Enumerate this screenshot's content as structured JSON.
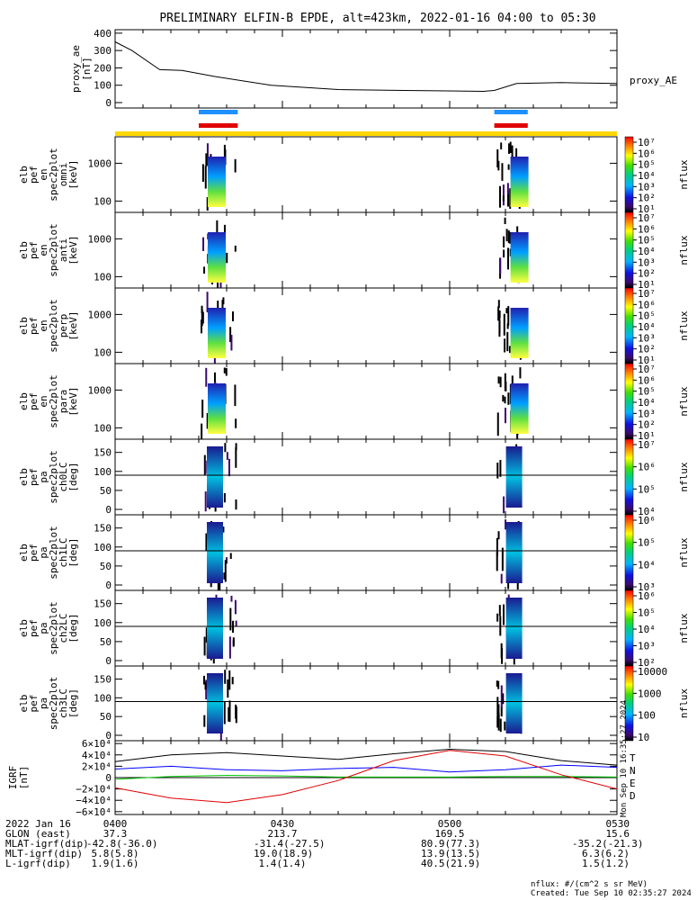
{
  "title": "PRELIMINARY ELFIN-B EPDE, alt=423km, 2022-01-16 04:00 to 05:30",
  "panels": [
    {
      "ylabel": [
        "proxy_ae",
        "[nT]"
      ],
      "right_label": "proxy_AE",
      "yticks": [
        "400",
        "300",
        "200",
        "100",
        "0"
      ]
    },
    {
      "ylabel": [
        "elb",
        "pef",
        "en",
        "spec2plot",
        "omni",
        "[keV]"
      ],
      "right_label": "nflux",
      "yticks": [
        "1000",
        "100"
      ]
    },
    {
      "ylabel": [
        "elb",
        "pef",
        "en",
        "spec2plot",
        "anti",
        "[keV]"
      ],
      "right_label": "nflux",
      "yticks": [
        "1000",
        "100"
      ]
    },
    {
      "ylabel": [
        "elb",
        "pef",
        "en",
        "spec2plot",
        "perp",
        "[keV]"
      ],
      "right_label": "nflux",
      "yticks": [
        "1000",
        "100"
      ]
    },
    {
      "ylabel": [
        "elb",
        "pef",
        "en",
        "spec2plot",
        "para",
        "[keV]"
      ],
      "right_label": "nflux",
      "yticks": [
        "1000",
        "100"
      ]
    },
    {
      "ylabel": [
        "elb",
        "pef",
        "pa",
        "spec2plot",
        "ch0LC",
        "[deg]"
      ],
      "right_label": "nflux",
      "yticks": [
        "150",
        "100",
        "50",
        "0"
      ]
    },
    {
      "ylabel": [
        "elb",
        "pef",
        "pa",
        "spec2plot",
        "ch1LC",
        "[deg]"
      ],
      "right_label": "nflux",
      "yticks": [
        "150",
        "100",
        "50",
        "0"
      ]
    },
    {
      "ylabel": [
        "elb",
        "pef",
        "pa",
        "spec2plot",
        "ch2LC",
        "[deg]"
      ],
      "right_label": "nflux",
      "yticks": [
        "150",
        "100",
        "50",
        "0"
      ]
    },
    {
      "ylabel": [
        "elb",
        "pef",
        "pa",
        "spec2plot",
        "ch3LC",
        "[deg]"
      ],
      "right_label": "nflux",
      "yticks": [
        "150",
        "100",
        "50",
        "0"
      ]
    },
    {
      "ylabel": [
        "IGRF",
        "[nT]"
      ],
      "right_label": "",
      "yticks": [
        "6×10⁴",
        "4×10⁴",
        "2×10⁴",
        "0",
        "−2×10⁴",
        "−4×10⁴",
        "−6×10⁴"
      ]
    }
  ],
  "colorbars": [
    {
      "labels": [
        "10⁷",
        "10⁶",
        "10⁵",
        "10⁴",
        "10³",
        "10²",
        "10¹"
      ]
    },
    {
      "labels": [
        "10⁷",
        "10⁶",
        "10⁵",
        "10⁴",
        "10³",
        "10²",
        "10¹"
      ]
    },
    {
      "labels": [
        "10⁷",
        "10⁶",
        "10⁵",
        "10⁴",
        "10³",
        "10²",
        "10¹"
      ]
    },
    {
      "labels": [
        "10⁷",
        "10⁶",
        "10⁵",
        "10⁴",
        "10³",
        "10²",
        "10¹"
      ]
    },
    {
      "labels": [
        "10⁷",
        "10⁶",
        "10⁵",
        "10⁴"
      ]
    },
    {
      "labels": [
        "10⁶",
        "10⁵",
        "10⁴",
        "10³"
      ]
    },
    {
      "labels": [
        "10⁶",
        "10⁵",
        "10⁴",
        "10³",
        "10²"
      ]
    },
    {
      "labels": [
        "10000",
        "1000",
        "100",
        "10"
      ]
    }
  ],
  "igrf_legend": [
    {
      "label": "T",
      "color": "#000000"
    },
    {
      "label": "N",
      "color": "#0000ff"
    },
    {
      "label": "E",
      "color": "#00c800"
    },
    {
      "label": "D",
      "color": "#e00000"
    }
  ],
  "side_stamp": "Mon Sep 10 16:35:27 2024",
  "footer": {
    "rows": [
      {
        "label": "2022 Jan 16",
        "values": [
          "0400",
          "0430",
          "0500",
          "0530"
        ]
      },
      {
        "label": "GLON (east)",
        "values": [
          "37.3",
          "213.7",
          "169.5",
          "15.6"
        ]
      },
      {
        "label": "MLAT-igrf(dip)",
        "values": [
          "-42.8(-36.0)",
          "-31.4(-27.5)",
          "80.9(77.3)",
          "-35.2(-21.3)"
        ]
      },
      {
        "label": "MLT-igrf(dip)",
        "values": [
          "5.8(5.8)",
          "19.0(18.9)",
          "13.9(13.5)",
          "6.3(6.2)"
        ]
      },
      {
        "label": "L-igrf(dip)",
        "values": [
          "1.9(1.6)",
          "1.4(1.4)",
          "40.5(21.9)",
          "1.5(1.2)"
        ]
      }
    ],
    "units_note": "nflux: #/(cm^2 s sr MeV)",
    "created": "Created: Tue Sep 10 02:35:27 2024"
  },
  "colors": {
    "science_zone_bar": "#ffd700",
    "blue_bar": "#1e90ff",
    "red_bar": "#e00000"
  },
  "chart_data": {
    "type": "line+spectrogram",
    "time_range": [
      "04:00",
      "05:30"
    ],
    "proxy_ae": {
      "t_min": [
        0,
        3,
        8,
        12,
        18,
        28,
        40,
        52,
        66,
        68,
        72,
        80,
        90
      ],
      "values": [
        350,
        300,
        190,
        185,
        150,
        100,
        75,
        70,
        65,
        70,
        110,
        115,
        110
      ],
      "ylim": [
        0,
        420
      ]
    },
    "science_zones_min": [
      [
        15,
        22
      ],
      [
        68,
        74
      ]
    ],
    "igrf": {
      "ylim": [
        -65000,
        65000
      ],
      "t_min": [
        0,
        10,
        20,
        30,
        40,
        50,
        60,
        70,
        80,
        90
      ],
      "series": [
        {
          "name": "T",
          "values": [
            28000,
            40000,
            44000,
            38000,
            32000,
            42000,
            50000,
            46000,
            30000,
            22000
          ]
        },
        {
          "name": "N",
          "values": [
            15000,
            20000,
            14000,
            12000,
            16000,
            18000,
            10000,
            14000,
            22000,
            18000
          ]
        },
        {
          "name": "E",
          "values": [
            -3000,
            2000,
            4000,
            3000,
            1000,
            1000,
            1000,
            2000,
            2000,
            1000
          ]
        },
        {
          "name": "D",
          "values": [
            -18000,
            -36000,
            -44000,
            -30000,
            -5000,
            30000,
            48000,
            38000,
            5000,
            -20000
          ]
        }
      ]
    }
  }
}
